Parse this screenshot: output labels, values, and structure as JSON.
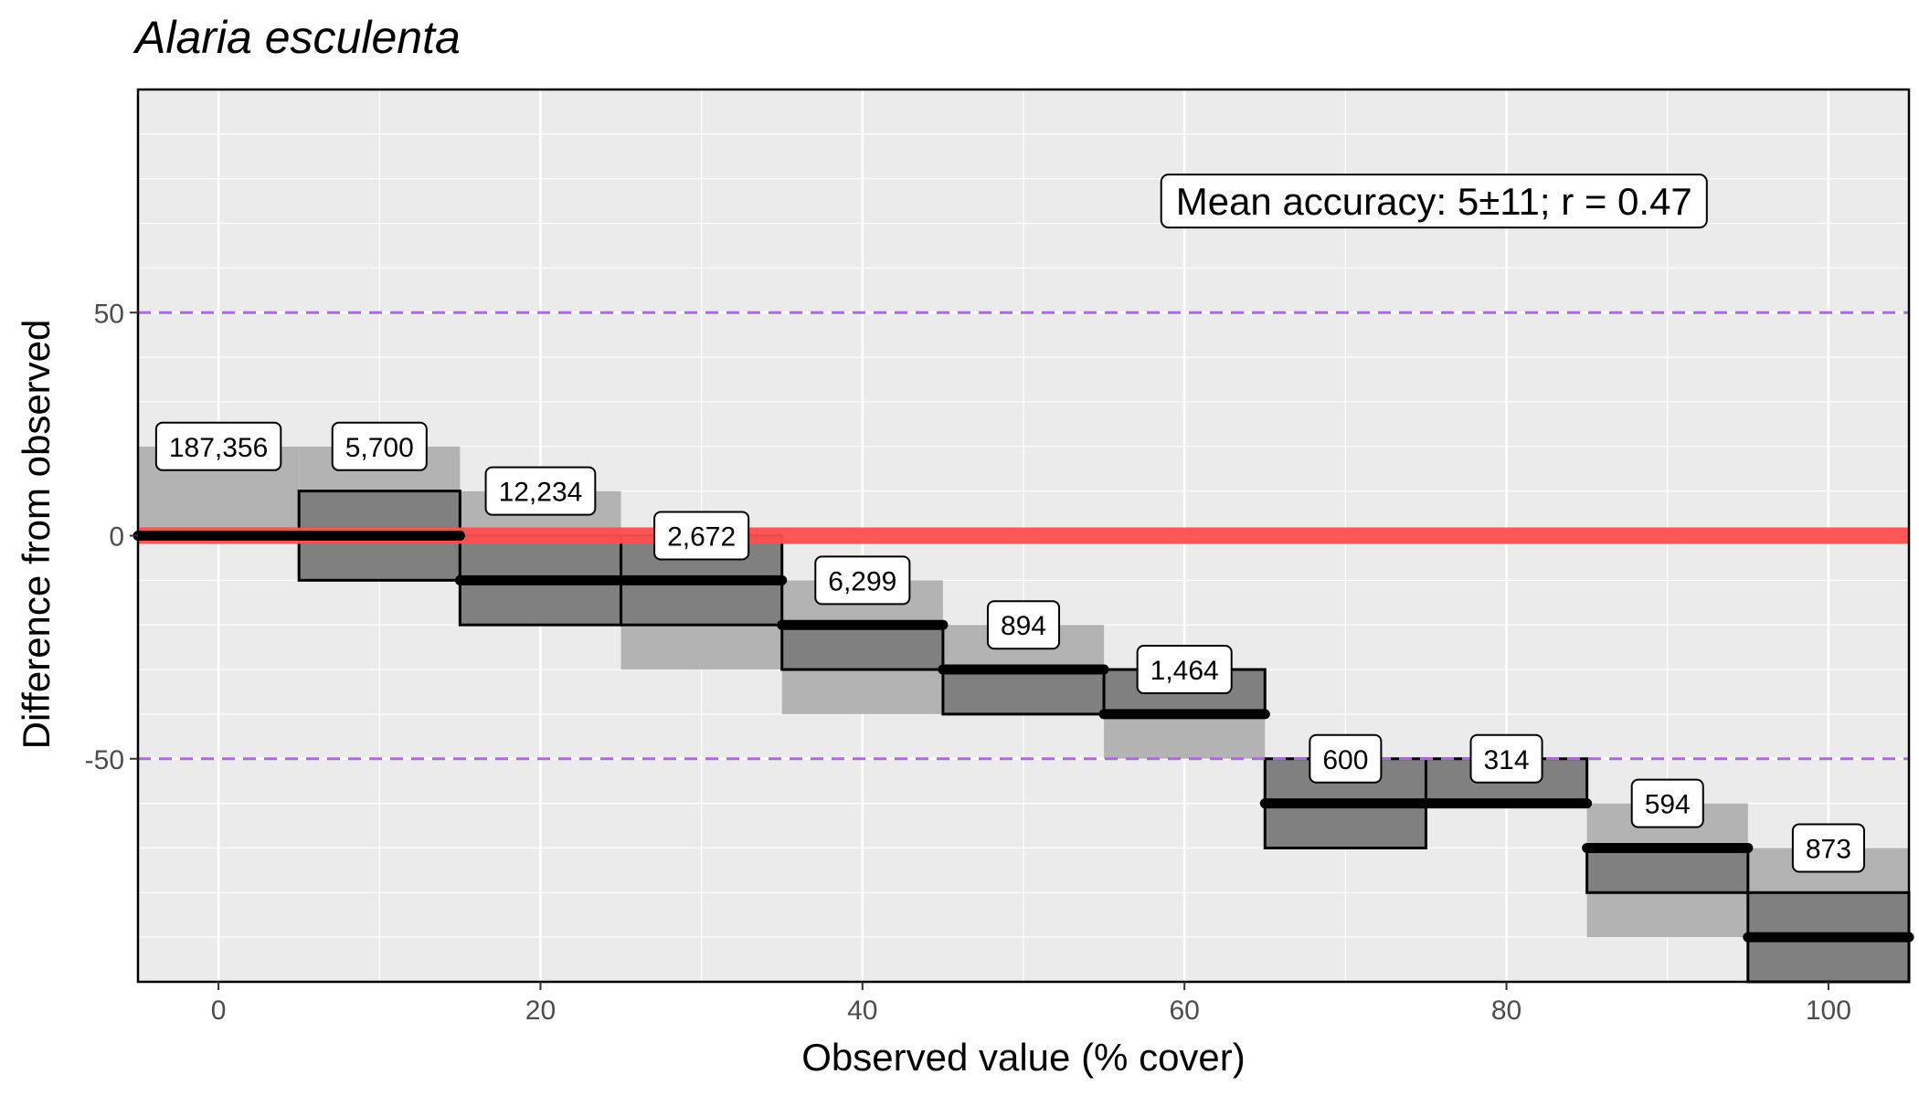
{
  "chart_data": {
    "type": "crossbar",
    "title": "Alaria esculenta",
    "xlabel": "Observed value (% cover)",
    "ylabel": "Difference from observed",
    "xlim": [
      -5,
      105
    ],
    "ylim": [
      -100,
      100
    ],
    "x_ticks": [
      0,
      20,
      40,
      60,
      80,
      100
    ],
    "y_ticks": [
      -50,
      0,
      50
    ],
    "x_tick_labels": [
      "0",
      "20",
      "40",
      "60",
      "80",
      "100"
    ],
    "y_tick_labels": [
      "-50",
      "0",
      "50"
    ],
    "bin_width": 10,
    "reference_line": {
      "y": 0,
      "color": "#ff4d4d"
    },
    "threshold_lines": {
      "values": [
        50,
        -50
      ],
      "color": "#b266e6",
      "style": "dashed"
    },
    "annotation": "Mean accuracy: 5±11; r = 0.47",
    "bins": [
      {
        "x": 0,
        "outer": [
          0,
          20
        ],
        "inner": [
          0,
          0
        ],
        "median": 0,
        "count": "187,356"
      },
      {
        "x": 10,
        "outer": [
          0,
          20
        ],
        "inner": [
          -10,
          10
        ],
        "median": 0,
        "count": "5,700"
      },
      {
        "x": 20,
        "outer": [
          -10,
          10
        ],
        "inner": [
          -20,
          0
        ],
        "median": -10,
        "count": "12,234"
      },
      {
        "x": 30,
        "outer": [
          -30,
          0
        ],
        "inner": [
          -20,
          0
        ],
        "median": -10,
        "count": "2,672"
      },
      {
        "x": 40,
        "outer": [
          -40,
          -10
        ],
        "inner": [
          -30,
          -20
        ],
        "median": -20,
        "count": "6,299"
      },
      {
        "x": 50,
        "outer": [
          -40,
          -20
        ],
        "inner": [
          -40,
          -30
        ],
        "median": -30,
        "count": "894"
      },
      {
        "x": 60,
        "outer": [
          -50,
          -30
        ],
        "inner": [
          -40,
          -30
        ],
        "median": -40,
        "count": "1,464"
      },
      {
        "x": 70,
        "outer": [
          -70,
          -50
        ],
        "inner": [
          -70,
          -50
        ],
        "median": -60,
        "count": "600"
      },
      {
        "x": 80,
        "outer": [
          -60,
          -50
        ],
        "inner": [
          -60,
          -50
        ],
        "median": -60,
        "count": "314"
      },
      {
        "x": 90,
        "outer": [
          -90,
          -60
        ],
        "inner": [
          -80,
          -70
        ],
        "median": -70,
        "count": "594"
      },
      {
        "x": 100,
        "outer": [
          -100,
          -70
        ],
        "inner": [
          -100,
          -80
        ],
        "median": -90,
        "count": "873"
      }
    ],
    "colors": {
      "panel": "#ebebeb",
      "grid_major": "#ffffff",
      "outer_fill": "#b3b3b3",
      "inner_fill": "#808080",
      "median": "#000000"
    }
  }
}
